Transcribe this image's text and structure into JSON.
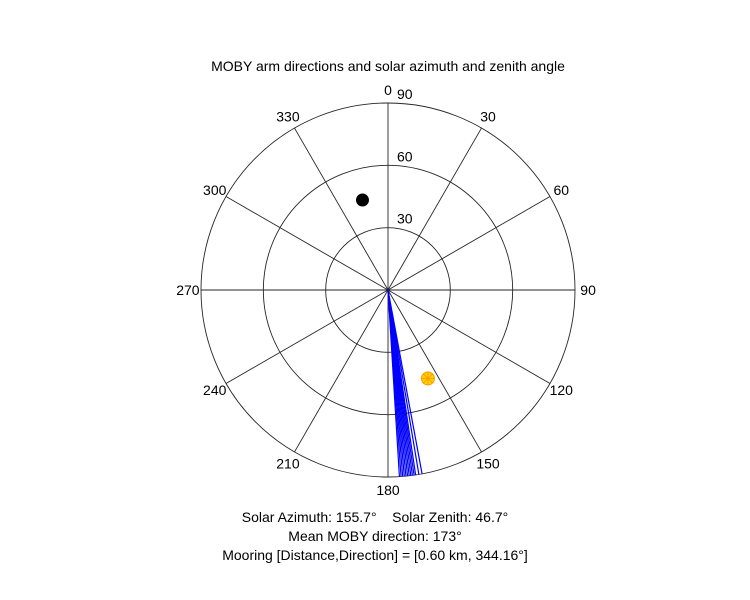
{
  "chart_data": {
    "type": "polar",
    "title": "MOBY arm directions and solar azimuth and zenith angle",
    "theta_direction": "clockwise",
    "theta_zero": "top",
    "theta_ticks": [
      0,
      30,
      60,
      90,
      120,
      150,
      180,
      210,
      240,
      270,
      300,
      330
    ],
    "theta_tick_labels": [
      "0",
      "30",
      "60",
      "90",
      "120",
      "150",
      "180",
      "210",
      "240",
      "270",
      "300",
      "330"
    ],
    "r_ticks": [
      30,
      60,
      90
    ],
    "r_tick_labels": [
      "30",
      "60",
      "90"
    ],
    "r_max": 90,
    "grid": true,
    "series": [
      {
        "kind": "lines",
        "color": "#0000ff",
        "directions_deg": [
          169.5,
          170.5,
          171.5,
          172.0,
          172.5,
          173.0,
          173.5,
          174.0,
          174.5,
          175.0,
          175.5,
          176.0,
          176.5
        ],
        "r": 90
      },
      {
        "kind": "point",
        "marker": "sun",
        "color": "#ffd700",
        "theta_deg": 155.7,
        "r": 46.7
      },
      {
        "kind": "point",
        "marker": "filled-circle",
        "color": "#000000",
        "theta_deg": 344.16,
        "r": 45
      }
    ],
    "annotations": [
      "Solar Azimuth: 155.7°    Solar Zenith: 46.7°",
      "Mean MOBY direction: 173°",
      "Mooring [Distance,Direction] = [0.60 km, 344.16°]"
    ]
  }
}
